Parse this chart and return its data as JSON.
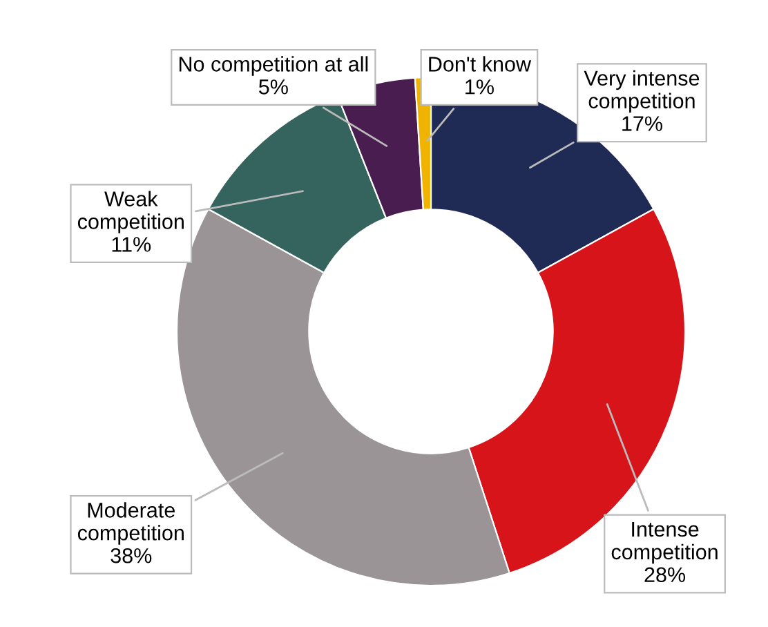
{
  "chart_data": {
    "type": "donut",
    "categories": [
      "Very intense\ncompetition",
      "Intense\ncompetition",
      "Moderate\ncompetition",
      "Weak\ncompetition",
      "No competition at all",
      "Don't know"
    ],
    "values": [
      17,
      28,
      38,
      11,
      5,
      1
    ],
    "colors": [
      "#1f2a55",
      "#d7141a",
      "#9a9496",
      "#35635e",
      "#4a1d50",
      "#f0b400"
    ],
    "value_labels": [
      "17%",
      "28%",
      "38%",
      "11%",
      "5%",
      "1%"
    ],
    "legend": false
  }
}
